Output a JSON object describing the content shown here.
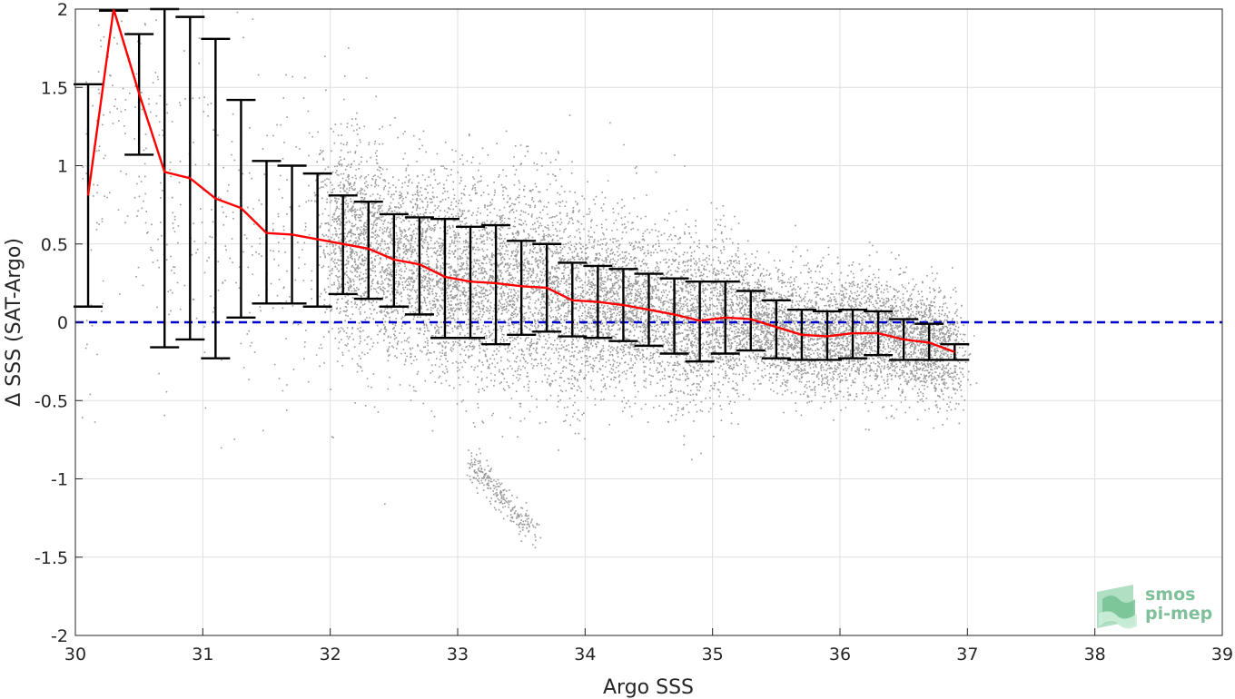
{
  "chart_data": {
    "type": "scatter",
    "xlabel": "Argo SSS",
    "ylabel": "Δ SSS (SAT-Argo)",
    "xlim": [
      30,
      39
    ],
    "ylim": [
      -2,
      2
    ],
    "x_ticks": [
      30,
      31,
      32,
      33,
      34,
      35,
      36,
      37,
      38,
      39
    ],
    "y_ticks": [
      -2,
      -1.5,
      -1,
      -0.5,
      0,
      0.5,
      1,
      1.5,
      2
    ],
    "y_tick_labels": [
      "-2",
      "-1.5",
      "-1",
      "-0.5",
      "0",
      "0.5",
      "1",
      "1.5",
      "2"
    ],
    "grid": true,
    "reference_line": {
      "y": 0,
      "color": "#0000cc",
      "style": "dashed"
    },
    "mean_line": {
      "color": "#ff0000",
      "x": [
        30.1,
        30.3,
        30.5,
        30.7,
        30.9,
        31.1,
        31.3,
        31.5,
        31.7,
        31.9,
        32.1,
        32.3,
        32.5,
        32.7,
        32.9,
        33.1,
        33.3,
        33.5,
        33.7,
        33.9,
        34.1,
        34.3,
        34.5,
        34.7,
        34.9,
        35.1,
        35.3,
        35.5,
        35.7,
        35.9,
        36.1,
        36.3,
        36.5,
        36.7,
        36.9
      ],
      "y": [
        0.81,
        2.0,
        1.46,
        0.96,
        0.92,
        0.79,
        0.73,
        0.57,
        0.56,
        0.53,
        0.5,
        0.47,
        0.4,
        0.37,
        0.29,
        0.26,
        0.25,
        0.23,
        0.22,
        0.14,
        0.13,
        0.11,
        0.08,
        0.05,
        0.01,
        0.03,
        0.02,
        -0.03,
        -0.08,
        -0.09,
        -0.07,
        -0.07,
        -0.11,
        -0.13,
        -0.19
      ]
    },
    "error_bars": {
      "color": "#000000",
      "x": [
        30.1,
        30.3,
        30.5,
        30.7,
        30.9,
        31.1,
        31.3,
        31.5,
        31.7,
        31.9,
        32.1,
        32.3,
        32.5,
        32.7,
        32.9,
        33.1,
        33.3,
        33.5,
        33.7,
        33.9,
        34.1,
        34.3,
        34.5,
        34.7,
        34.9,
        35.1,
        35.3,
        35.5,
        35.7,
        35.9,
        36.1,
        36.3,
        36.5,
        36.7,
        36.9
      ],
      "low": [
        0.1,
        1.99,
        1.07,
        -0.16,
        -0.11,
        -0.23,
        0.03,
        0.12,
        0.12,
        0.1,
        0.18,
        0.15,
        0.1,
        0.05,
        -0.1,
        -0.1,
        -0.14,
        -0.08,
        -0.06,
        -0.09,
        -0.1,
        -0.12,
        -0.15,
        -0.2,
        -0.25,
        -0.2,
        -0.18,
        -0.23,
        -0.24,
        -0.24,
        -0.23,
        -0.21,
        -0.24,
        -0.24,
        -0.24
      ],
      "high": [
        1.52,
        1.99,
        1.84,
        2.0,
        1.95,
        1.81,
        1.42,
        1.03,
        1.0,
        0.95,
        0.81,
        0.77,
        0.69,
        0.67,
        0.66,
        0.61,
        0.62,
        0.52,
        0.5,
        0.38,
        0.36,
        0.34,
        0.31,
        0.28,
        0.26,
        0.26,
        0.2,
        0.14,
        0.08,
        0.07,
        0.08,
        0.07,
        0.02,
        -0.01,
        -0.14
      ]
    },
    "scatter_series": {
      "color": "#808080",
      "description_ref": "dense cloud of individual match-up points"
    },
    "logo": {
      "line1": "smos",
      "line2": "pi-mep",
      "color": "#7fbf9a"
    }
  }
}
